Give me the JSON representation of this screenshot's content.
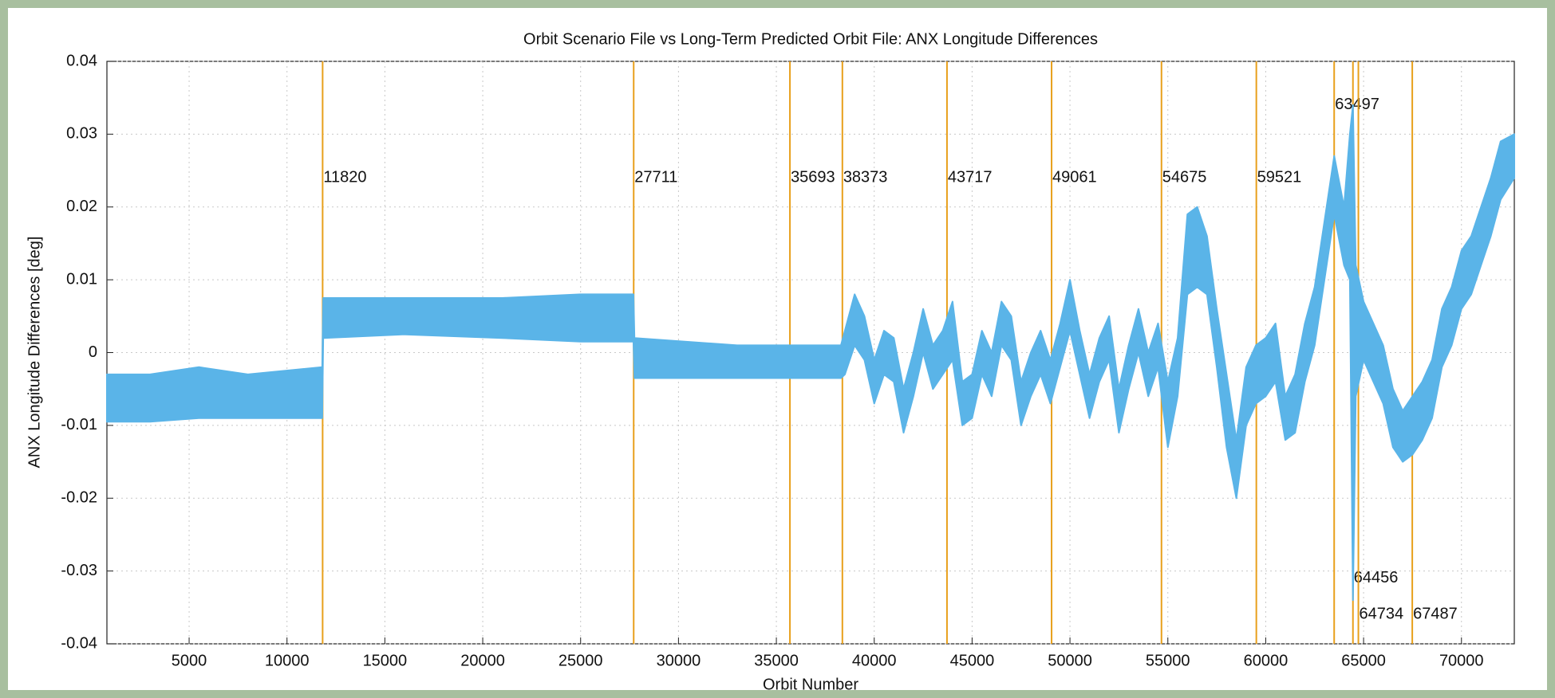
{
  "chart_data": {
    "type": "range",
    "title": "Orbit Scenario File vs Long-Term Predicted Orbit File: ANX Longitude Differences",
    "xlabel": "Orbit Number",
    "ylabel": "ANX Longitude Differences [deg]",
    "color": "#5ab4e8",
    "line_color": "#e8a01c",
    "grid": true,
    "xlim": [
      800,
      72700
    ],
    "ylim": [
      -0.04,
      0.04
    ],
    "xticks": [
      5000,
      10000,
      15000,
      20000,
      25000,
      30000,
      35000,
      40000,
      45000,
      50000,
      55000,
      60000,
      65000,
      70000
    ],
    "yticks": [
      -0.04,
      -0.03,
      -0.02,
      -0.01,
      0,
      0.01,
      0.02,
      0.03,
      0.04
    ],
    "vlines": [
      11820,
      27711,
      35693,
      38373,
      43717,
      49061,
      54675,
      59521,
      63497,
      64456,
      64734,
      67487
    ],
    "x": [
      800,
      3000,
      5500,
      8000,
      11800,
      11850,
      16000,
      21000,
      25000,
      27700,
      27750,
      33000,
      38300,
      38500,
      39000,
      39500,
      40000,
      40500,
      41000,
      41500,
      42000,
      42500,
      43000,
      43500,
      44000,
      44500,
      45000,
      45500,
      46000,
      46500,
      47000,
      47500,
      48000,
      48500,
      49000,
      49500,
      50000,
      50500,
      51000,
      51500,
      52000,
      52500,
      53000,
      53500,
      54000,
      54500,
      55000,
      55500,
      56000,
      56500,
      57000,
      57500,
      58000,
      58500,
      59000,
      59500,
      60000,
      60500,
      61000,
      61500,
      62000,
      62500,
      63000,
      63500,
      64000,
      64300,
      64456,
      64600,
      65000,
      65500,
      66000,
      66500,
      67000,
      67500,
      68000,
      68500,
      69000,
      69500,
      70000,
      70500,
      71000,
      71500,
      72000,
      72700
    ],
    "low": [
      -0.0095,
      -0.0095,
      -0.009,
      -0.009,
      -0.009,
      0.002,
      0.0025,
      0.002,
      0.0015,
      0.0015,
      -0.0035,
      -0.0035,
      -0.0035,
      -0.003,
      0.001,
      -0.001,
      -0.007,
      -0.003,
      -0.004,
      -0.011,
      -0.006,
      0.0,
      -0.005,
      -0.003,
      -0.001,
      -0.01,
      -0.009,
      -0.003,
      -0.006,
      0.001,
      -0.001,
      -0.01,
      -0.006,
      -0.003,
      -0.007,
      -0.002,
      0.003,
      -0.003,
      -0.009,
      -0.004,
      -0.001,
      -0.011,
      -0.005,
      0.0,
      -0.006,
      -0.002,
      -0.013,
      -0.006,
      0.008,
      0.009,
      0.008,
      -0.002,
      -0.013,
      -0.02,
      -0.01,
      -0.007,
      -0.006,
      -0.004,
      -0.012,
      -0.011,
      -0.004,
      0.001,
      0.01,
      0.019,
      0.012,
      0.01,
      -0.034,
      -0.006,
      -0.001,
      -0.004,
      -0.007,
      -0.013,
      -0.015,
      -0.014,
      -0.012,
      -0.009,
      -0.002,
      0.001,
      0.006,
      0.008,
      0.012,
      0.016,
      0.021,
      0.024
    ],
    "high": [
      -0.003,
      -0.003,
      -0.002,
      -0.003,
      -0.002,
      0.0075,
      0.0075,
      0.0075,
      0.008,
      0.008,
      0.002,
      0.001,
      0.001,
      0.003,
      0.008,
      0.005,
      -0.001,
      0.003,
      0.002,
      -0.005,
      0.0,
      0.006,
      0.001,
      0.003,
      0.007,
      -0.004,
      -0.003,
      0.003,
      0.0,
      0.007,
      0.005,
      -0.004,
      0.0,
      0.003,
      -0.001,
      0.004,
      0.01,
      0.003,
      -0.003,
      0.002,
      0.005,
      -0.005,
      0.001,
      0.006,
      0.0,
      0.004,
      -0.004,
      0.002,
      0.019,
      0.02,
      0.016,
      0.006,
      -0.003,
      -0.012,
      -0.002,
      0.001,
      0.002,
      0.004,
      -0.006,
      -0.003,
      0.004,
      0.009,
      0.018,
      0.027,
      0.02,
      0.03,
      0.034,
      0.012,
      0.007,
      0.004,
      0.001,
      -0.005,
      -0.008,
      -0.006,
      -0.004,
      -0.001,
      0.006,
      0.009,
      0.014,
      0.016,
      0.02,
      0.024,
      0.029,
      0.03
    ]
  }
}
